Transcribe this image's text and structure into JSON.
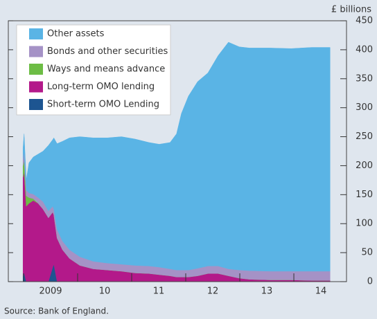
{
  "chart_data": {
    "type": "area",
    "stacked": true,
    "yaxis_label": "£ billions",
    "source": "Source:  Bank of England.",
    "x": [
      2008.99,
      2009.01,
      2009.05,
      2009.1,
      2009.18,
      2009.27,
      2009.36,
      2009.46,
      2009.54,
      2009.56,
      2009.62,
      2009.72,
      2009.85,
      2010.04,
      2010.29,
      2010.55,
      2010.81,
      2011.06,
      2011.32,
      2011.51,
      2011.71,
      2011.83,
      2011.92,
      2012.05,
      2012.22,
      2012.41,
      2012.6,
      2012.79,
      2012.99,
      2013.18,
      2013.56,
      2013.95,
      2014.33,
      2014.67
    ],
    "xlim": [
      2008.718,
      2014.974
    ],
    "xticks": [
      {
        "value": 2009,
        "label": "2009"
      },
      {
        "value": 2010,
        "label": "10"
      },
      {
        "value": 2011,
        "label": "11"
      },
      {
        "value": 2012,
        "label": "12"
      },
      {
        "value": 2013,
        "label": "13"
      },
      {
        "value": 2014,
        "label": "14"
      }
    ],
    "ylim": [
      0,
      450
    ],
    "yticks": [
      0,
      50,
      100,
      150,
      200,
      250,
      300,
      350,
      400,
      450
    ],
    "series": [
      {
        "name": "Short-term OMO Lending",
        "color": "#1d5591",
        "values": [
          10,
          15,
          0,
          0,
          0,
          0,
          0,
          0,
          25,
          30,
          0,
          0,
          0,
          0,
          0,
          0,
          0,
          0,
          0,
          0,
          0,
          0,
          0,
          0,
          0,
          0,
          0,
          0,
          0,
          0,
          0,
          0,
          0,
          0
        ]
      },
      {
        "name": "Long-term OMO lending",
        "color": "#b3198a",
        "values": [
          170,
          175,
          130,
          135,
          140,
          135,
          125,
          110,
          95,
          85,
          75,
          55,
          40,
          28,
          22,
          20,
          18,
          15,
          14,
          12,
          10,
          8,
          8,
          8,
          10,
          14,
          14,
          10,
          6,
          4,
          3,
          3,
          2,
          2
        ]
      },
      {
        "name": "Ways and means advance",
        "color": "#6dbd45",
        "values": [
          20,
          20,
          18,
          10,
          3,
          0,
          0,
          0,
          0,
          0,
          0,
          0,
          0,
          0,
          0,
          0,
          0,
          0,
          0,
          0,
          0,
          0,
          0,
          0,
          0,
          0,
          0,
          0,
          0,
          0,
          0,
          0,
          0,
          0
        ]
      },
      {
        "name": "Bonds and other securities",
        "color": "#a592c6",
        "values": [
          10,
          15,
          10,
          8,
          8,
          10,
          13,
          12,
          10,
          10,
          15,
          15,
          15,
          15,
          13,
          12,
          12,
          13,
          13,
          13,
          12,
          12,
          12,
          12,
          13,
          13,
          13,
          12,
          14,
          15,
          15,
          15,
          16,
          16
        ]
      },
      {
        "name": "Other assets",
        "color": "#5ab4e5",
        "values": [
          20,
          30,
          17,
          52,
          64,
          75,
          87,
          113,
          115,
          123,
          148,
          172,
          193,
          207,
          213,
          216,
          220,
          218,
          213,
          212,
          218,
          235,
          270,
          300,
          322,
          333,
          363,
          391,
          385,
          384,
          385,
          384,
          386,
          386
        ]
      }
    ]
  }
}
